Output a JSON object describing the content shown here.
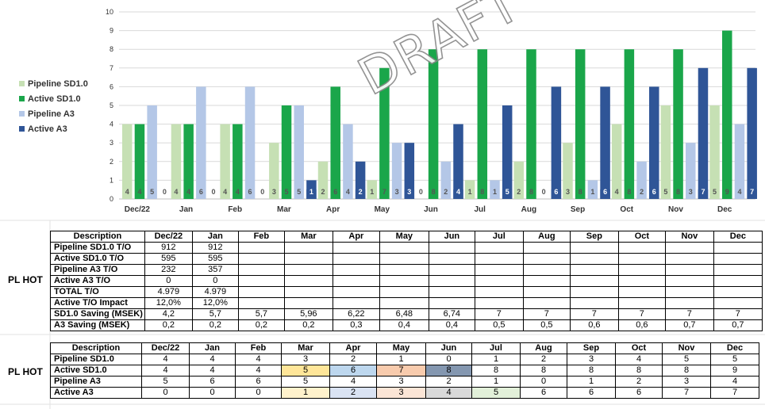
{
  "chart_data": {
    "type": "bar",
    "title": "",
    "categories": [
      "Dec/22",
      "Jan",
      "Feb",
      "Mar",
      "Apr",
      "May",
      "Jun",
      "Jul",
      "Aug",
      "Sep",
      "Oct",
      "Nov",
      "Dec"
    ],
    "ylim": [
      0,
      10
    ],
    "yticks": [
      0,
      1,
      2,
      3,
      4,
      5,
      6,
      7,
      8,
      9,
      10
    ],
    "grid": true,
    "legend_position": "left",
    "series": [
      {
        "name": "Pipeline SD1.0",
        "color": "#c6e0b4",
        "values": [
          4,
          4,
          4,
          3,
          2,
          1,
          0,
          1,
          2,
          3,
          4,
          5,
          5
        ]
      },
      {
        "name": "Active SD1.0",
        "color": "#1aa64a",
        "values": [
          4,
          4,
          4,
          5,
          6,
          7,
          8,
          8,
          8,
          8,
          8,
          8,
          9
        ]
      },
      {
        "name": "Pipeline A3",
        "color": "#b4c7e7",
        "values": [
          5,
          6,
          6,
          5,
          4,
          3,
          2,
          1,
          0,
          1,
          2,
          3,
          4
        ]
      },
      {
        "name": "Active A3",
        "color": "#2f5597",
        "values": [
          0,
          0,
          0,
          1,
          2,
          3,
          4,
          5,
          6,
          6,
          6,
          7,
          7
        ]
      }
    ]
  },
  "watermark": "DRAFT",
  "table1": {
    "side_label": "PL HOT",
    "headers": [
      "Description",
      "Dec/22",
      "Jan",
      "Feb",
      "Mar",
      "Apr",
      "May",
      "Jun",
      "Jul",
      "Aug",
      "Sep",
      "Oct",
      "Nov",
      "Dec"
    ],
    "rows": [
      [
        "Pipeline SD1.0 T/O",
        "912",
        "912",
        "",
        "",
        "",
        "",
        "",
        "",
        "",
        "",
        "",
        "",
        ""
      ],
      [
        "Active SD1.0 T/O",
        "595",
        "595",
        "",
        "",
        "",
        "",
        "",
        "",
        "",
        "",
        "",
        "",
        ""
      ],
      [
        "Pipeline A3 T/O",
        "232",
        "357",
        "",
        "",
        "",
        "",
        "",
        "",
        "",
        "",
        "",
        "",
        ""
      ],
      [
        "Active A3 T/O",
        "0",
        "0",
        "",
        "",
        "",
        "",
        "",
        "",
        "",
        "",
        "",
        "",
        ""
      ],
      [
        "TOTAL T/O",
        "4.979",
        "4.979",
        "",
        "",
        "",
        "",
        "",
        "",
        "",
        "",
        "",
        "",
        ""
      ],
      [
        "Active T/O Impact",
        "12,0%",
        "12,0%",
        "",
        "",
        "",
        "",
        "",
        "",
        "",
        "",
        "",
        "",
        ""
      ],
      [
        "SD1.0 Saving (MSEK)",
        "4,2",
        "5,7",
        "5,7",
        "5,96",
        "6,22",
        "6,48",
        "6,74",
        "7",
        "7",
        "7",
        "7",
        "7",
        "7"
      ],
      [
        "A3 Saving (MSEK)",
        "0,2",
        "0,2",
        "0,2",
        "0,2",
        "0,3",
        "0,4",
        "0,4",
        "0,5",
        "0,5",
        "0,6",
        "0,6",
        "0,7",
        "0,7"
      ]
    ]
  },
  "table2": {
    "side_label": "PL HOT",
    "headers": [
      "Description",
      "Dec/22",
      "Jan",
      "Feb",
      "Mar",
      "Apr",
      "May",
      "Jun",
      "Jul",
      "Aug",
      "Sep",
      "Oct",
      "Nov",
      "Dec"
    ],
    "rows": [
      [
        "Pipeline SD1.0",
        "4",
        "4",
        "4",
        "3",
        "2",
        "1",
        "0",
        "1",
        "2",
        "3",
        "4",
        "5",
        "5"
      ],
      [
        "Active SD1.0",
        "4",
        "4",
        "4",
        "5",
        "6",
        "7",
        "8",
        "8",
        "8",
        "8",
        "8",
        "8",
        "9"
      ],
      [
        "Pipeline A3",
        "5",
        "6",
        "6",
        "5",
        "4",
        "3",
        "2",
        "1",
        "0",
        "1",
        "2",
        "3",
        "4"
      ],
      [
        "Active A3",
        "0",
        "0",
        "0",
        "1",
        "2",
        "3",
        "4",
        "5",
        "6",
        "6",
        "6",
        "7",
        "7"
      ]
    ],
    "highlights": {
      "1": {
        "4": "#ffe699",
        "5": "#bdd7ee",
        "6": "#f8cbad",
        "7": "#8497b0"
      },
      "4": {
        "4": "#fff2cc",
        "5": "#dae3f3",
        "6": "#fbe5d6",
        "7": "#d9d9d9",
        "8": "#e2f0d9"
      }
    }
  }
}
